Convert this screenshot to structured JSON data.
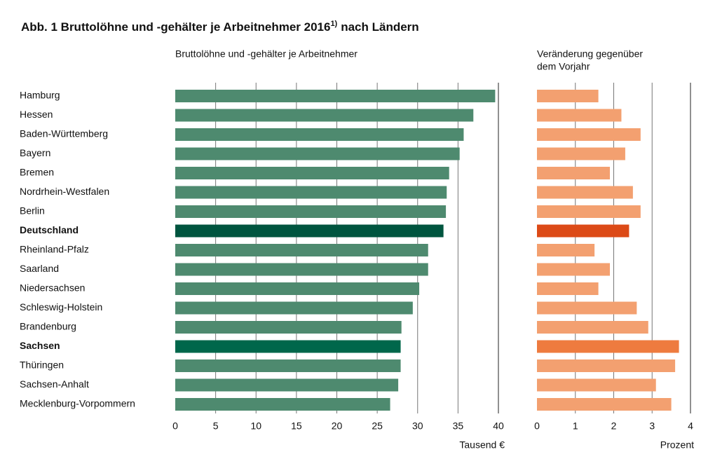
{
  "figure": {
    "title": "Abb. 1 Bruttolöhne und -gehälter je Arbeitnehmer 2016",
    "title_note": "1)",
    "title_end": "nach Ländern"
  },
  "chart_data": [
    {
      "type": "hbar",
      "subtitle": [
        "Bruttolöhne und -gehälter je Arbeitnehmer"
      ],
      "xlabel": "Tausend €",
      "categories": [
        "Hamburg",
        "Hessen",
        "Baden-Württemberg",
        "Bayern",
        "Bremen",
        "Nordrhein-Westfalen",
        "Berlin",
        "Deutschland",
        "Rheinland-Pfalz",
        "Saarland",
        "Niedersachsen",
        "Schleswig-Holstein",
        "Brandenburg",
        "Sachsen",
        "Thüringen",
        "Sachsen-Anhalt",
        "Mecklenburg-Vorpommern"
      ],
      "emphasis": [
        false,
        false,
        false,
        false,
        false,
        false,
        false,
        true,
        false,
        false,
        false,
        false,
        false,
        true,
        false,
        false,
        false
      ],
      "values": [
        39.6,
        36.9,
        35.7,
        35.2,
        33.9,
        33.6,
        33.5,
        33.2,
        31.3,
        31.3,
        30.2,
        29.4,
        28.0,
        27.9,
        27.9,
        27.6,
        26.6
      ],
      "colors": [
        "#4e8a6f",
        "#4e8a6f",
        "#4e8a6f",
        "#4e8a6f",
        "#4e8a6f",
        "#4e8a6f",
        "#4e8a6f",
        "#00553f",
        "#4e8a6f",
        "#4e8a6f",
        "#4e8a6f",
        "#4e8a6f",
        "#4e8a6f",
        "#00674b",
        "#4e8a6f",
        "#4e8a6f",
        "#4e8a6f"
      ],
      "xlim": [
        0,
        40
      ],
      "xticks": [
        0,
        5,
        10,
        15,
        20,
        25,
        30,
        35,
        40
      ],
      "grid": true
    },
    {
      "type": "hbar",
      "subtitle": [
        "Veränderung gegenüber",
        "dem Vorjahr"
      ],
      "xlabel": "Prozent",
      "values": [
        1.6,
        2.2,
        2.7,
        2.3,
        1.9,
        2.5,
        2.7,
        2.4,
        1.5,
        1.9,
        1.6,
        2.6,
        2.9,
        3.7,
        3.6,
        3.1,
        3.5
      ],
      "colors": [
        "#f3a070",
        "#f3a070",
        "#f3a070",
        "#f3a070",
        "#f3a070",
        "#f3a070",
        "#f3a070",
        "#dc4a17",
        "#f3a070",
        "#f3a070",
        "#f3a070",
        "#f3a070",
        "#f3a070",
        "#ee7b3f",
        "#f3a070",
        "#f3a070",
        "#f3a070"
      ],
      "xlim": [
        0,
        4
      ],
      "xticks": [
        0,
        1,
        2,
        3,
        4
      ],
      "grid": true
    }
  ]
}
